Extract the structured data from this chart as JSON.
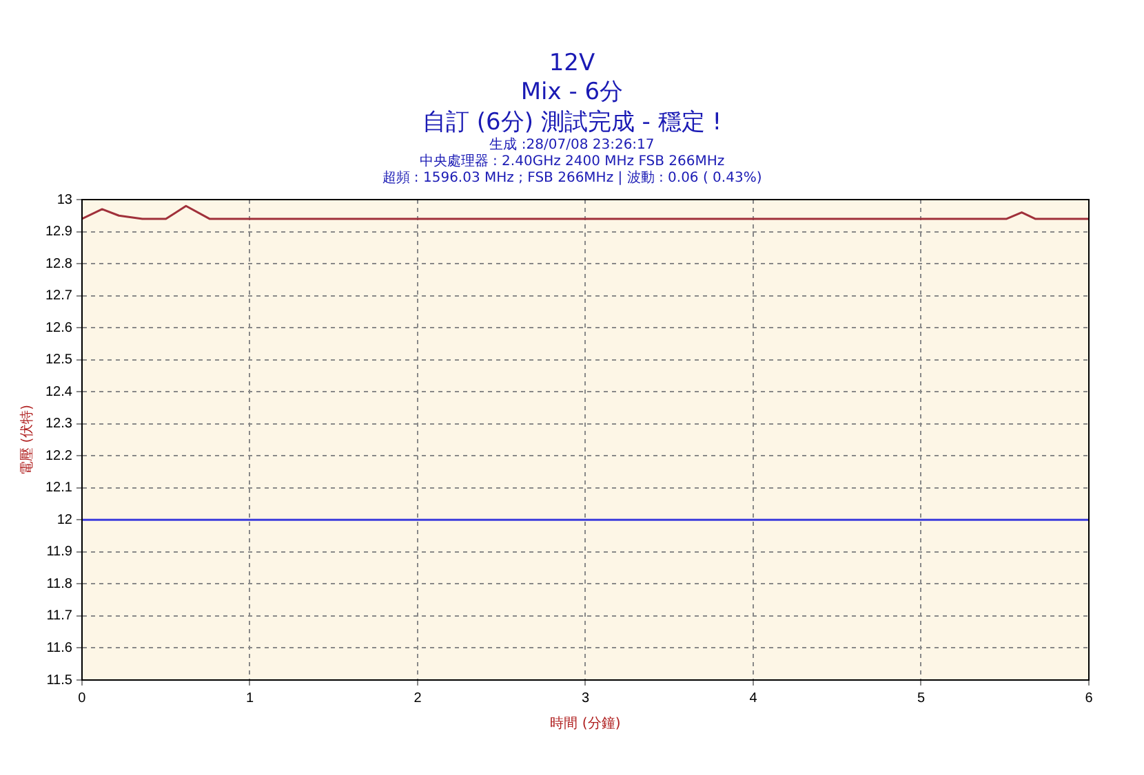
{
  "chart_data": {
    "type": "line",
    "title": "12V",
    "subtitle": "Mix - 6分",
    "xlabel": "時間 (分鐘)",
    "ylabel": "電壓 (伏特)",
    "annotations": [
      "自訂 (6分) 測試完成 - 穩定 !",
      "生成 :28/07/08 23:26:17",
      "中央處理器 : 2.40GHz 2400 MHz FSB 266MHz",
      "超頻 : 1596.03 MHz ; FSB 266MHz | 波動 : 0.06 ( 0.43%)"
    ],
    "series": [
      {
        "color": "#a0303a",
        "x": [
          0,
          0.12,
          0.22,
          0.36,
          0.5,
          0.62,
          0.76,
          5.51,
          5.6,
          5.68,
          6
        ],
        "values": [
          12.94,
          12.97,
          12.95,
          12.94,
          12.94,
          12.98,
          12.94,
          12.94,
          12.96,
          12.94,
          12.94
        ]
      }
    ],
    "ref_lines": [
      {
        "axis": "y",
        "value": 12,
        "color": "#3b3bdc"
      }
    ],
    "xlim": [
      0,
      6
    ],
    "xticks": [
      0,
      1,
      2,
      3,
      4,
      5,
      6
    ],
    "ylim": [
      11.5,
      13
    ],
    "yticks": [
      11.5,
      11.6,
      11.7,
      11.8,
      11.9,
      12,
      12.1,
      12.2,
      12.3,
      12.4,
      12.5,
      12.6,
      12.7,
      12.8,
      12.9,
      13
    ],
    "grid": true,
    "legend": false,
    "marker": "none",
    "line_style": "solid"
  }
}
